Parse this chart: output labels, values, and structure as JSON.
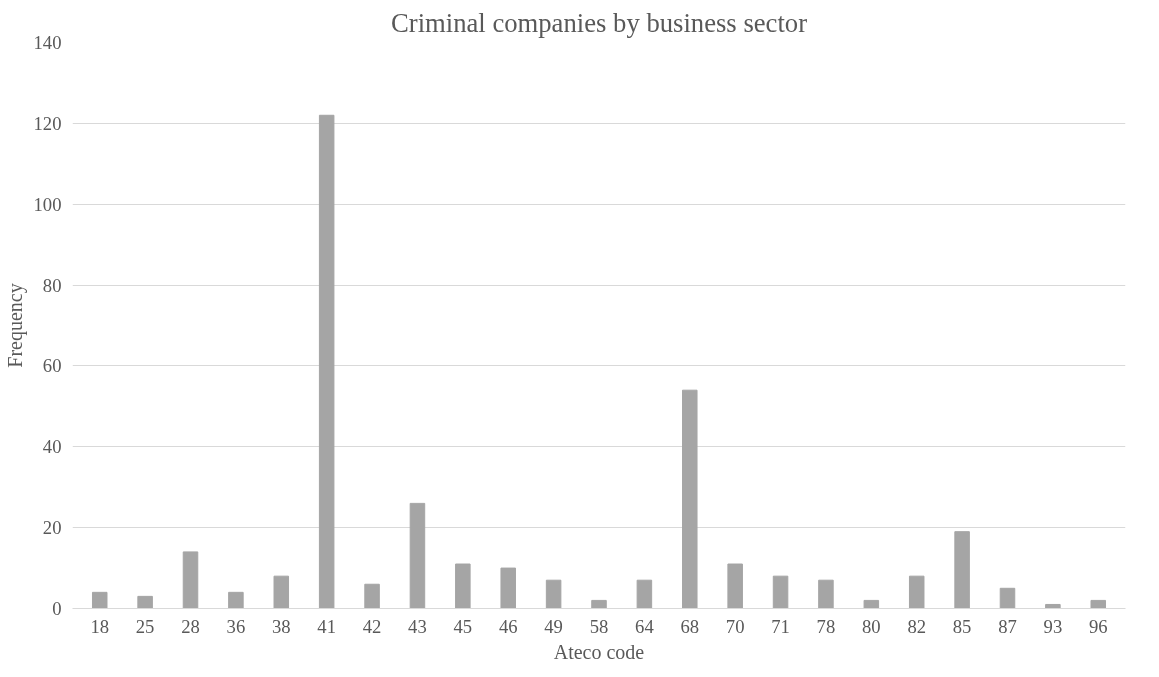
{
  "chart_data": {
    "type": "bar",
    "title": "Criminal companies by business sector",
    "xlabel": "Ateco code",
    "ylabel": "Frequency",
    "categories": [
      "18",
      "25",
      "28",
      "36",
      "38",
      "41",
      "42",
      "43",
      "45",
      "46",
      "49",
      "58",
      "64",
      "68",
      "70",
      "71",
      "78",
      "80",
      "82",
      "85",
      "87",
      "93",
      "96"
    ],
    "values": [
      4,
      3,
      14,
      4,
      8,
      122,
      6,
      26,
      11,
      10,
      7,
      2,
      7,
      54,
      11,
      8,
      7,
      2,
      8,
      19,
      5,
      1,
      2
    ],
    "color": "#a5a5a5",
    "ylim": [
      0,
      140
    ],
    "yticks": [
      0,
      20,
      40,
      60,
      80,
      100,
      120,
      140
    ],
    "grid": "y"
  }
}
